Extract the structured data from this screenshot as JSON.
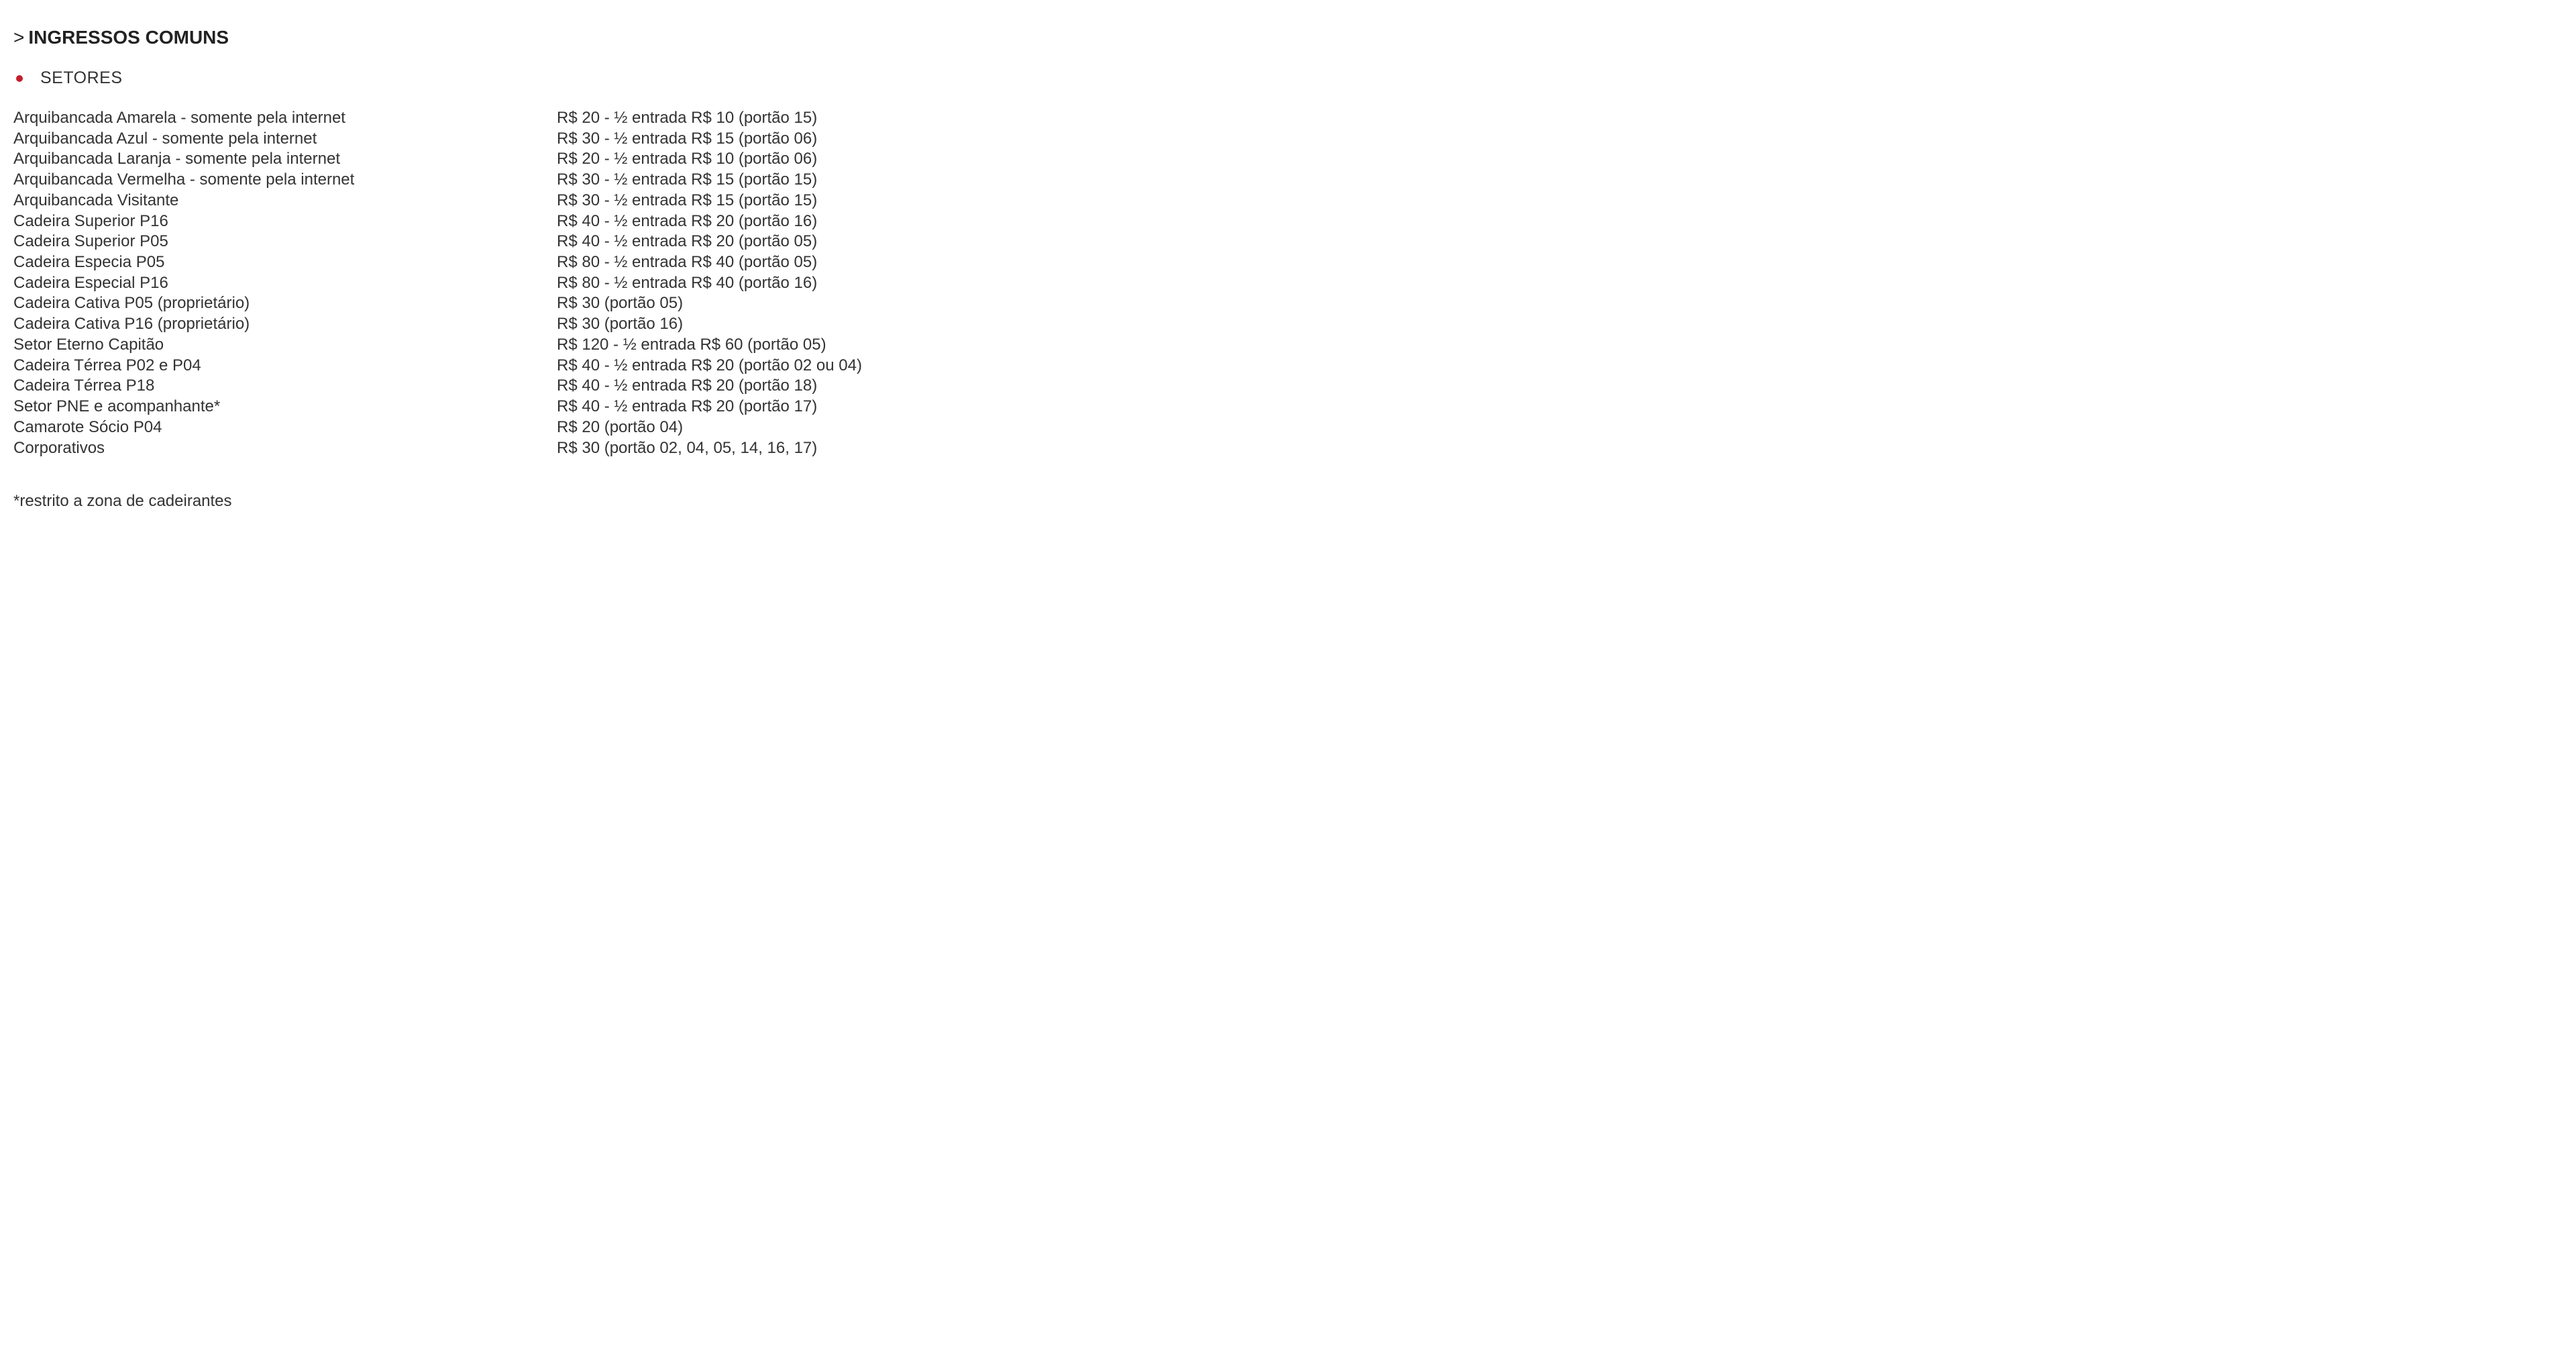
{
  "heading": {
    "chevron": ">",
    "text": "INGRESSOS COMUNS"
  },
  "subheading": {
    "label": "SETORES"
  },
  "rows": [
    {
      "name": "Arquibancada Amarela - somente pela internet",
      "price": "R$ 20 - ½ entrada R$ 10 (portão 15)"
    },
    {
      "name": "Arquibancada Azul - somente pela internet",
      "price": "R$ 30 - ½ entrada R$ 15 (portão 06)"
    },
    {
      "name": "Arquibancada Laranja - somente pela internet",
      "price": "R$ 20 - ½ entrada R$ 10 (portão 06)"
    },
    {
      "name": "Arquibancada Vermelha - somente pela internet",
      "price": "R$ 30 - ½ entrada R$ 15 (portão 15)"
    },
    {
      "name": "Arquibancada Visitante",
      "price": "R$ 30 - ½ entrada R$ 15 (portão 15)"
    },
    {
      "name": "Cadeira Superior P16",
      "price": "R$ 40 - ½ entrada R$ 20 (portão 16)"
    },
    {
      "name": "Cadeira Superior P05",
      "price": "R$ 40 - ½ entrada R$ 20 (portão 05)"
    },
    {
      "name": "Cadeira Especia P05",
      "price": "R$ 80 - ½ entrada R$ 40 (portão 05)"
    },
    {
      "name": "Cadeira Especial P16",
      "price": "R$ 80 - ½ entrada R$ 40 (portão 16)"
    },
    {
      "name": "Cadeira Cativa P05 (proprietário)",
      "price": "R$ 30 (portão 05)"
    },
    {
      "name": "Cadeira Cativa P16 (proprietário)",
      "price": "R$ 30 (portão 16)"
    },
    {
      "name": "Setor Eterno Capitão",
      "price": "R$ 120 - ½ entrada R$ 60 (portão 05)"
    },
    {
      "name": "Cadeira Térrea P02 e P04",
      "price": "R$ 40 - ½ entrada R$ 20 (portão 02 ou 04)"
    },
    {
      "name": "Cadeira Térrea P18",
      "price": "R$ 40 - ½ entrada R$ 20 (portão 18)"
    },
    {
      "name": "Setor PNE e acompanhante*",
      "price": "R$ 40 - ½ entrada R$ 20 (portão 17)"
    },
    {
      "name": "Camarote Sócio P04",
      "price": "R$ 20 (portão 04)"
    },
    {
      "name": "Corporativos",
      "price": "R$ 30 (portão 02, 04, 05, 14, 16, 17)"
    }
  ],
  "footnote": "*restrito a zona de cadeirantes",
  "styling": {
    "heading_fontsize": 28,
    "body_fontsize": 24,
    "subheading_fontsize": 25,
    "text_color": "#333333",
    "heading_color": "#222222",
    "bullet_color": "#c41e2a",
    "background_color": "#ffffff",
    "sector_col_width": 810,
    "line_height": 1.28
  }
}
